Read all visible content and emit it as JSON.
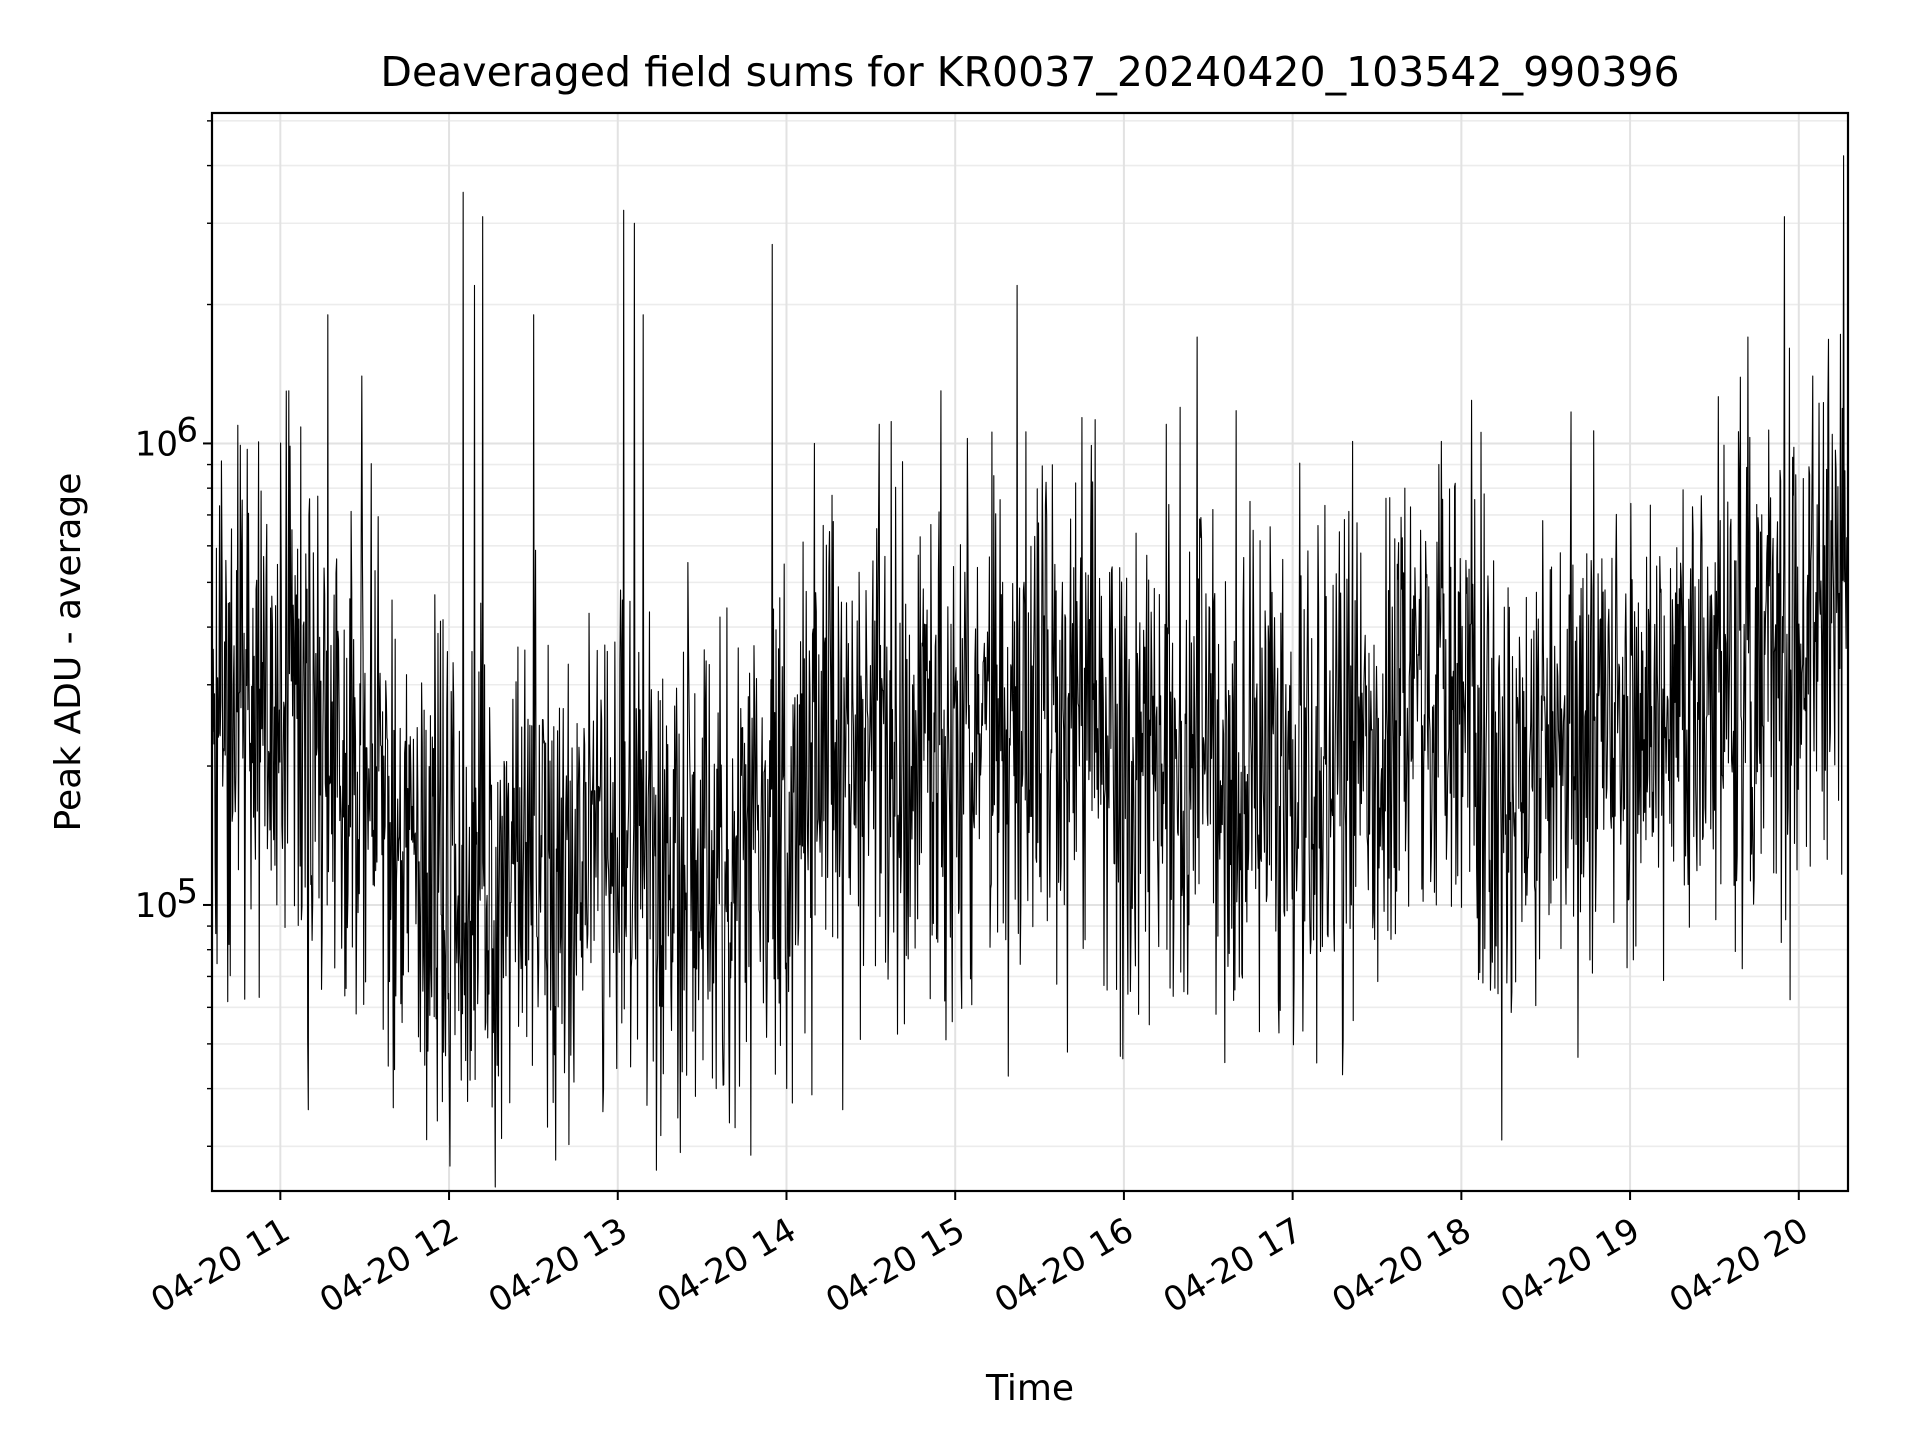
{
  "chart_data": {
    "type": "line",
    "title": "Deaveraged field sums for KR0037_20240420_103542_990396",
    "xlabel": "Time",
    "ylabel": "Peak ADU - average",
    "yscale": "log",
    "ylim": [
      24000,
      5200000
    ],
    "xlim": [
      "2024-04-20 10:35:42",
      "2024-04-20 20:17:30"
    ],
    "grid": true,
    "legend": "none",
    "line_color": "#000000",
    "x_ticks": [
      {
        "t": "2024-04-20 11:00",
        "label": "04-20 11"
      },
      {
        "t": "2024-04-20 12:00",
        "label": "04-20 12"
      },
      {
        "t": "2024-04-20 13:00",
        "label": "04-20 13"
      },
      {
        "t": "2024-04-20 14:00",
        "label": "04-20 14"
      },
      {
        "t": "2024-04-20 15:00",
        "label": "04-20 15"
      },
      {
        "t": "2024-04-20 16:00",
        "label": "04-20 16"
      },
      {
        "t": "2024-04-20 17:00",
        "label": "04-20 17"
      },
      {
        "t": "2024-04-20 18:00",
        "label": "04-20 18"
      },
      {
        "t": "2024-04-20 19:00",
        "label": "04-20 19"
      },
      {
        "t": "2024-04-20 20:00",
        "label": "04-20 20"
      }
    ],
    "y_ticks": [
      {
        "value": 100000,
        "base": "10",
        "exp": "5"
      },
      {
        "value": 1000000,
        "base": "10",
        "exp": "6"
      }
    ],
    "series_baseline": [
      [
        "2024-04-20 10:36",
        260000
      ],
      [
        "2024-04-20 10:50",
        280000
      ],
      [
        "2024-04-20 11:00",
        300000
      ],
      [
        "2024-04-20 11:15",
        230000
      ],
      [
        "2024-04-20 11:30",
        190000
      ],
      [
        "2024-04-20 11:45",
        135000
      ],
      [
        "2024-04-20 12:00",
        120000
      ],
      [
        "2024-04-20 12:20",
        110000
      ],
      [
        "2024-04-20 12:40",
        112000
      ],
      [
        "2024-04-20 13:00",
        160000
      ],
      [
        "2024-04-20 13:20",
        120000
      ],
      [
        "2024-04-20 13:40",
        115000
      ],
      [
        "2024-04-20 14:00",
        150000
      ],
      [
        "2024-04-20 14:20",
        230000
      ],
      [
        "2024-04-20 14:40",
        240000
      ],
      [
        "2024-04-20 15:00",
        200000
      ],
      [
        "2024-04-20 15:20",
        250000
      ],
      [
        "2024-04-20 15:40",
        290000
      ],
      [
        "2024-04-20 16:00",
        220000
      ],
      [
        "2024-04-20 16:30",
        210000
      ],
      [
        "2024-04-20 17:00",
        200000
      ],
      [
        "2024-04-20 17:30",
        210000
      ],
      [
        "2024-04-20 17:45",
        300000
      ],
      [
        "2024-04-20 18:00",
        260000
      ],
      [
        "2024-04-20 18:15",
        180000
      ],
      [
        "2024-04-20 18:40",
        230000
      ],
      [
        "2024-04-20 19:00",
        250000
      ],
      [
        "2024-04-20 19:20",
        280000
      ],
      [
        "2024-04-20 19:40",
        320000
      ],
      [
        "2024-04-20 20:00",
        360000
      ],
      [
        "2024-04-20 20:17",
        450000
      ]
    ],
    "spikes": [
      [
        "2024-04-20 11:03",
        1300000
      ],
      [
        "2024-04-20 11:17",
        1900000
      ],
      [
        "2024-04-20 11:29",
        1400000
      ],
      [
        "2024-04-20 11:55",
        470000
      ],
      [
        "2024-04-20 12:05",
        3500000
      ],
      [
        "2024-04-20 12:09",
        2200000
      ],
      [
        "2024-04-20 12:12",
        3100000
      ],
      [
        "2024-04-20 12:30",
        1900000
      ],
      [
        "2024-04-20 12:55",
        1400000
      ],
      [
        "2024-04-20 13:02",
        3200000
      ],
      [
        "2024-04-20 13:06",
        3000000
      ],
      [
        "2024-04-20 13:09",
        1900000
      ],
      [
        "2024-04-20 13:55",
        2700000
      ],
      [
        "2024-04-20 14:10",
        1000000
      ],
      [
        "2024-04-20 14:33",
        1100000
      ],
      [
        "2024-04-20 14:55",
        1300000
      ],
      [
        "2024-04-20 15:22",
        2200000
      ],
      [
        "2024-04-20 15:40",
        1400000
      ],
      [
        "2024-04-20 16:15",
        1100000
      ],
      [
        "2024-04-20 16:26",
        1700000
      ],
      [
        "2024-04-20 17:40",
        800000
      ],
      [
        "2024-04-20 17:52",
        900000
      ],
      [
        "2024-04-20 19:42",
        1700000
      ],
      [
        "2024-04-20 19:55",
        3100000
      ],
      [
        "2024-04-20 20:05",
        1400000
      ],
      [
        "2024-04-20 20:16",
        4200000
      ]
    ],
    "dips": [
      [
        "2024-04-20 11:10",
        36000
      ],
      [
        "2024-04-20 11:52",
        31000
      ],
      [
        "2024-04-20 12:00",
        40000
      ],
      [
        "2024-04-20 12:35",
        33000
      ],
      [
        "2024-04-20 12:38",
        28000
      ],
      [
        "2024-04-20 12:55",
        40000
      ],
      [
        "2024-04-20 13:35",
        40000
      ],
      [
        "2024-04-20 14:00",
        40000
      ],
      [
        "2024-04-20 14:20",
        36000
      ],
      [
        "2024-04-20 15:40",
        48000
      ],
      [
        "2024-04-20 16:55",
        62000
      ],
      [
        "2024-04-20 18:12",
        66000
      ]
    ]
  }
}
